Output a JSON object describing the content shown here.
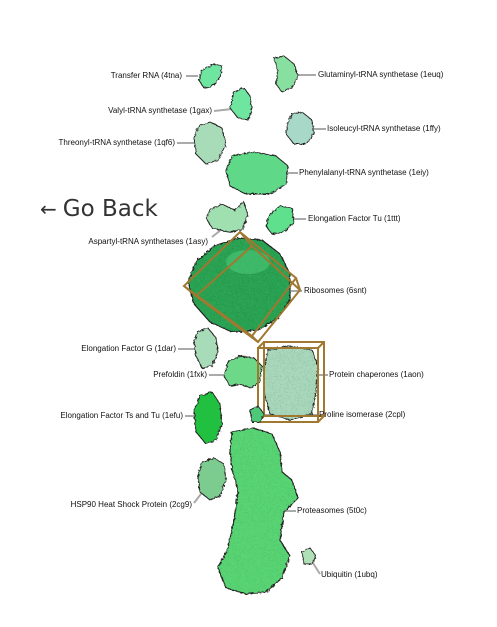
{
  "navigation": {
    "back_arrow": "←",
    "back_label": "Go Back"
  },
  "structures": [
    {
      "id": "transfer-rna",
      "label": "Transfer RNA (4tna)",
      "color": "#6ee6a0"
    },
    {
      "id": "glutaminyl",
      "label": "Glutaminyl-tRNA synthetase (1euq)",
      "color": "#88e0a0"
    },
    {
      "id": "valyl",
      "label": "Valyl-tRNA synthetase (1gax)",
      "color": "#6ee6a0"
    },
    {
      "id": "isoleucyl",
      "label": "Isoleucyl-tRNA synthetase (1ffy)",
      "color": "#a8d8c8"
    },
    {
      "id": "threonyl",
      "label": "Threonyl-tRNA synthetase (1qf6)",
      "color": "#a8dcb8"
    },
    {
      "id": "phenylalanyl",
      "label": "Phenylalanyl-tRNA synthetase (1eiy)",
      "color": "#5ed888"
    },
    {
      "id": "aspartyl",
      "label": "Aspartyl-tRNA synthetases (1asy)",
      "color": "#a0e0b0"
    },
    {
      "id": "ef-tu",
      "label": "Elongation Factor Tu (1ttt)",
      "color": "#5ee08c"
    },
    {
      "id": "ribosomes",
      "label": "Ribosomes (6snt)",
      "color": "#2fa85a"
    },
    {
      "id": "ef-g",
      "label": "Elongation Factor G (1dar)",
      "color": "#a8dcb8"
    },
    {
      "id": "prefoldin",
      "label": "Prefoldin (1fxk)",
      "color": "#6cd888"
    },
    {
      "id": "chaperones",
      "label": "Protein chaperones (1aon)",
      "color": "#b0dcc4"
    },
    {
      "id": "ef-ts-tu",
      "label": "Elongation Factor Ts and Tu (1efu)",
      "color": "#22c040"
    },
    {
      "id": "proline-isomerase",
      "label": "Proline isomerase (2cpl)",
      "color": "#4ec878"
    },
    {
      "id": "hsp90",
      "label": "HSP90 Heat Shock Protein (2cg9)",
      "color": "#7ccc90"
    },
    {
      "id": "proteasomes",
      "label": "Proteasomes (5t0c)",
      "color": "#5cd878"
    },
    {
      "id": "ubiquitin",
      "label": "Ubiquitin (1ubq)",
      "color": "#b0e0b8"
    }
  ],
  "colors": {
    "selection_box": "#a07830",
    "leader_line": "#aaaaaa",
    "outline": "#222222"
  }
}
